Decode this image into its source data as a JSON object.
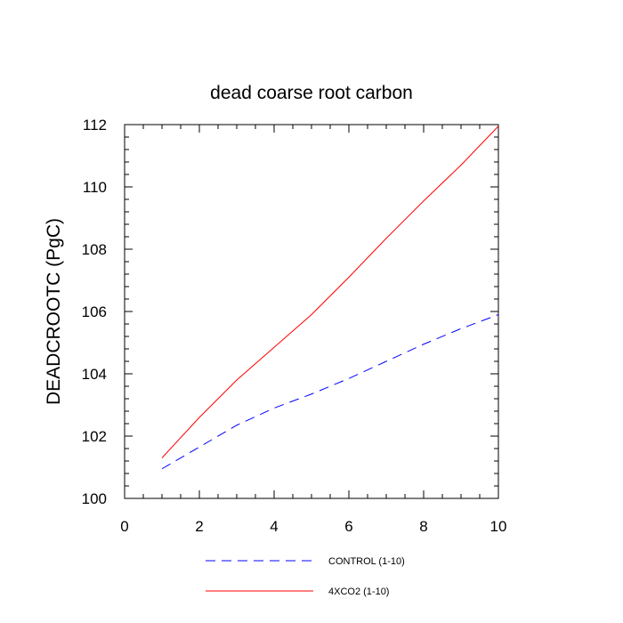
{
  "chart_data": {
    "type": "line",
    "title": "dead coarse root carbon",
    "ylabel": "DEADCROOTC  (PgC)",
    "xlabel": "",
    "xlim": [
      0,
      10
    ],
    "ylim": [
      100,
      112
    ],
    "xticks": [
      0,
      2,
      4,
      6,
      8,
      10
    ],
    "yticks": [
      100,
      102,
      104,
      106,
      108,
      110,
      112
    ],
    "x": [
      1,
      2,
      3,
      4,
      5,
      6,
      7,
      8,
      9,
      10
    ],
    "series": [
      {
        "name": "CONTROL (1-10)",
        "color": "#0000ff",
        "dash": "dashed",
        "values": [
          100.95,
          101.65,
          102.35,
          102.9,
          103.35,
          103.85,
          104.4,
          104.95,
          105.45,
          105.9
        ]
      },
      {
        "name": "4XCO2 (1-10)",
        "color": "#ff0000",
        "dash": "solid",
        "values": [
          101.3,
          102.6,
          103.8,
          104.85,
          105.9,
          107.1,
          108.35,
          109.55,
          110.7,
          111.95
        ]
      }
    ],
    "legend_position": "bottom",
    "grid": false
  }
}
